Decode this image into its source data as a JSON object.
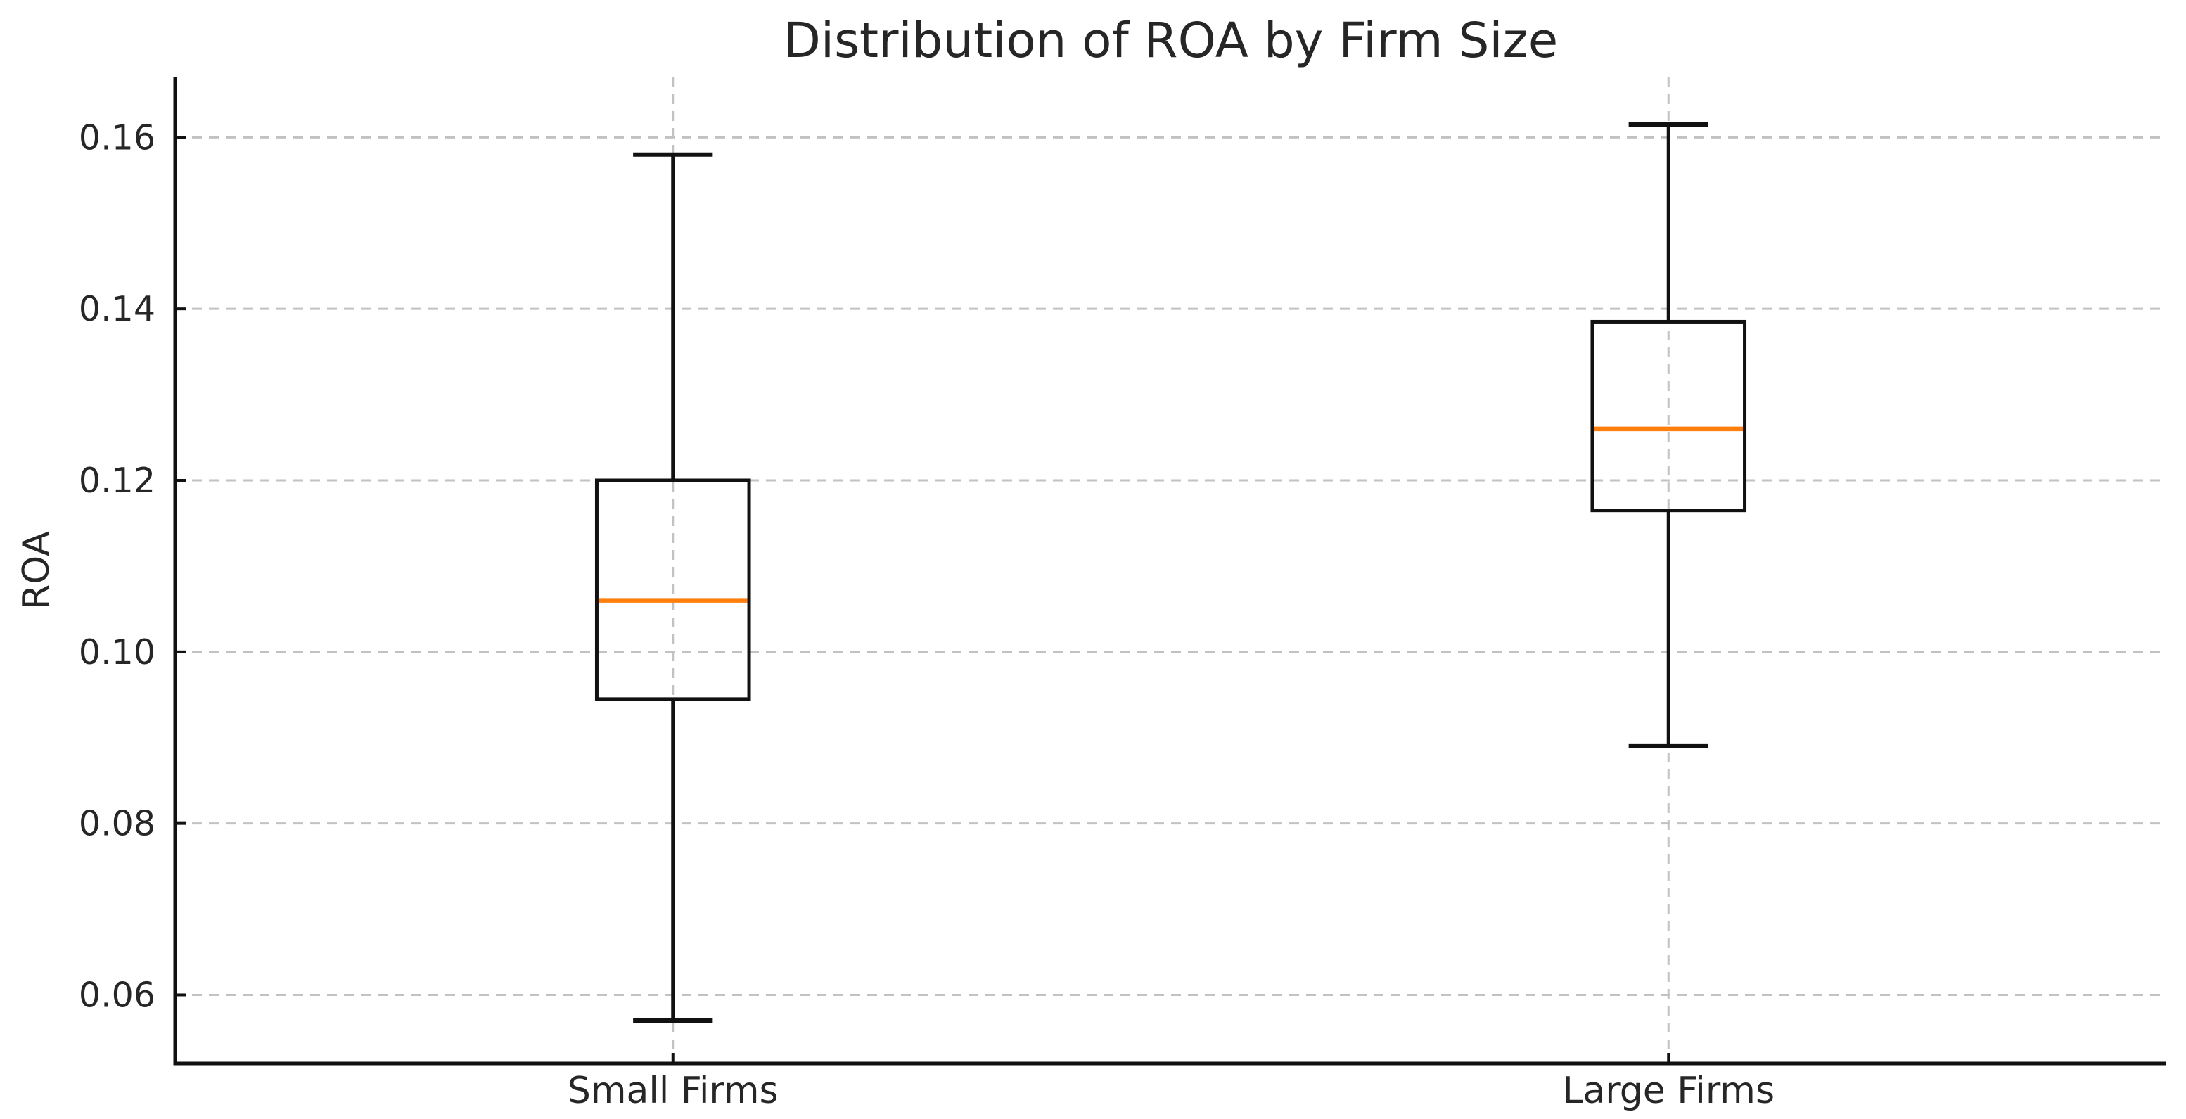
{
  "chart_data": {
    "type": "boxplot",
    "title": "Distribution of ROA by Firm Size",
    "xlabel": "",
    "ylabel": "ROA",
    "categories": [
      "Small Firms",
      "Large Firms"
    ],
    "positions": [
      1,
      2
    ],
    "series": [
      {
        "name": "Small Firms",
        "whisker_low": 0.057,
        "q1": 0.0945,
        "median": 0.106,
        "q3": 0.12,
        "whisker_high": 0.158
      },
      {
        "name": "Large Firms",
        "whisker_low": 0.089,
        "q1": 0.1165,
        "median": 0.126,
        "q3": 0.1385,
        "whisker_high": 0.1615
      }
    ],
    "yticks": [
      0.06,
      0.08,
      0.1,
      0.12,
      0.14,
      0.16
    ],
    "ytick_format_decimals": 2,
    "ylim": [
      0.052,
      0.167
    ],
    "xlim": [
      0.5,
      2.5
    ],
    "box_width": 0.153,
    "cap_width": 0.08,
    "grid": "dashed-both-axes",
    "legend": "none",
    "colors": {
      "median": "#ff7f0e",
      "line": "#111111",
      "grid": "#c2c2c2",
      "text": "#262626",
      "background": "#ffffff"
    }
  }
}
